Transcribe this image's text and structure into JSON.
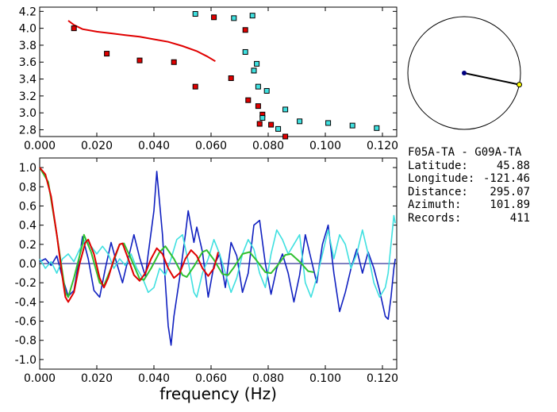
{
  "station_pair": "F05A-TA - G09A-TA",
  "info": [
    {
      "label": "Latitude:",
      "value": "45.88"
    },
    {
      "label": "Longitude:",
      "value": "-121.46"
    },
    {
      "label": "Distance:",
      "value": "295.07"
    },
    {
      "label": "Azimuth:",
      "value": "101.89"
    },
    {
      "label": "Records:",
      "value": "411"
    }
  ],
  "azimuth_deg": 101.89,
  "colors": {
    "red": "#e00000",
    "cyan": "#3fe0e0",
    "blue": "#1020c0",
    "green": "#30c030",
    "navy": "#000080",
    "yellow": "#ffff00"
  },
  "chart_data": [
    {
      "type": "scatter",
      "xlim": [
        0.0,
        0.125
      ],
      "ylim": [
        2.72,
        4.25
      ],
      "xticks": [
        "0.000",
        "0.020",
        "0.040",
        "0.060",
        "0.080",
        "0.100",
        "0.120"
      ],
      "yticks": [
        "2.8",
        "3.0",
        "3.2",
        "3.4",
        "3.6",
        "3.8",
        "4.0",
        "4.2"
      ],
      "series": [
        {
          "marker": "square-red",
          "points": [
            [
              0.012,
              4.0
            ],
            [
              0.0235,
              3.7
            ],
            [
              0.035,
              3.62
            ],
            [
              0.047,
              3.6
            ],
            [
              0.0545,
              3.31
            ],
            [
              0.061,
              4.13
            ],
            [
              0.067,
              3.41
            ],
            [
              0.072,
              3.98
            ],
            [
              0.073,
              3.15
            ],
            [
              0.075,
              3.5
            ],
            [
              0.0765,
              3.08
            ],
            [
              0.077,
              2.87
            ],
            [
              0.078,
              2.98
            ],
            [
              0.081,
              2.86
            ],
            [
              0.086,
              2.72
            ]
          ]
        },
        {
          "marker": "square-cyan",
          "points": [
            [
              0.0545,
              4.17
            ],
            [
              0.068,
              4.12
            ],
            [
              0.0745,
              4.15
            ],
            [
              0.072,
              3.72
            ],
            [
              0.076,
              3.58
            ],
            [
              0.075,
              3.5
            ],
            [
              0.0765,
              3.31
            ],
            [
              0.0795,
              3.26
            ],
            [
              0.078,
              2.94
            ],
            [
              0.086,
              3.04
            ],
            [
              0.0835,
              2.81
            ],
            [
              0.091,
              2.9
            ],
            [
              0.101,
              2.88
            ],
            [
              0.1095,
              2.85
            ],
            [
              0.118,
              2.82
            ]
          ]
        },
        {
          "line": "red",
          "points": [
            [
              0.01,
              4.09
            ],
            [
              0.012,
              4.04
            ],
            [
              0.015,
              3.99
            ],
            [
              0.02,
              3.96
            ],
            [
              0.025,
              3.94
            ],
            [
              0.03,
              3.92
            ],
            [
              0.035,
              3.9
            ],
            [
              0.04,
              3.87
            ],
            [
              0.045,
              3.84
            ],
            [
              0.05,
              3.79
            ],
            [
              0.055,
              3.73
            ],
            [
              0.0585,
              3.67
            ],
            [
              0.0615,
              3.61
            ]
          ]
        }
      ]
    },
    {
      "type": "line",
      "xlabel": "frequency (Hz)",
      "xlim": [
        0.0,
        0.125
      ],
      "ylim": [
        -1.1,
        1.1
      ],
      "xticks": [
        "0.000",
        "0.020",
        "0.040",
        "0.060",
        "0.080",
        "0.100",
        "0.120"
      ],
      "yticks": [
        "1.0",
        "0.8",
        "0.6",
        "0.4",
        "0.2",
        "0.0",
        "-0.2",
        "-0.4",
        "-0.6",
        "-0.8",
        "-1.0"
      ],
      "series": [
        {
          "color": "blue",
          "points": [
            [
              0.0,
              0.02
            ],
            [
              0.002,
              0.05
            ],
            [
              0.004,
              -0.02
            ],
            [
              0.006,
              0.08
            ],
            [
              0.008,
              -0.15
            ],
            [
              0.01,
              -0.34
            ],
            [
              0.012,
              -0.28
            ],
            [
              0.014,
              0.08
            ],
            [
              0.015,
              0.28
            ],
            [
              0.017,
              0.05
            ],
            [
              0.019,
              -0.28
            ],
            [
              0.021,
              -0.35
            ],
            [
              0.023,
              -0.05
            ],
            [
              0.025,
              0.22
            ],
            [
              0.027,
              0.0
            ],
            [
              0.029,
              -0.2
            ],
            [
              0.031,
              0.05
            ],
            [
              0.033,
              0.3
            ],
            [
              0.035,
              0.06
            ],
            [
              0.037,
              -0.13
            ],
            [
              0.038,
              0.1
            ],
            [
              0.04,
              0.55
            ],
            [
              0.041,
              0.96
            ],
            [
              0.043,
              0.3
            ],
            [
              0.044,
              -0.2
            ],
            [
              0.045,
              -0.65
            ],
            [
              0.046,
              -0.85
            ],
            [
              0.047,
              -0.55
            ],
            [
              0.049,
              -0.15
            ],
            [
              0.051,
              0.3
            ],
            [
              0.052,
              0.55
            ],
            [
              0.054,
              0.22
            ],
            [
              0.055,
              0.38
            ],
            [
              0.057,
              0.12
            ],
            [
              0.059,
              -0.35
            ],
            [
              0.061,
              -0.02
            ],
            [
              0.063,
              0.1
            ],
            [
              0.065,
              -0.25
            ],
            [
              0.067,
              0.22
            ],
            [
              0.069,
              0.08
            ],
            [
              0.071,
              -0.3
            ],
            [
              0.073,
              -0.1
            ],
            [
              0.075,
              0.4
            ],
            [
              0.077,
              0.45
            ],
            [
              0.079,
              0.0
            ],
            [
              0.081,
              -0.32
            ],
            [
              0.083,
              -0.05
            ],
            [
              0.085,
              0.1
            ],
            [
              0.087,
              -0.1
            ],
            [
              0.089,
              -0.4
            ],
            [
              0.091,
              -0.12
            ],
            [
              0.093,
              0.3
            ],
            [
              0.095,
              0.05
            ],
            [
              0.097,
              -0.2
            ],
            [
              0.099,
              0.2
            ],
            [
              0.101,
              0.4
            ],
            [
              0.103,
              -0.1
            ],
            [
              0.105,
              -0.5
            ],
            [
              0.107,
              -0.3
            ],
            [
              0.109,
              -0.05
            ],
            [
              0.111,
              0.15
            ],
            [
              0.113,
              -0.1
            ],
            [
              0.115,
              0.12
            ],
            [
              0.117,
              -0.05
            ],
            [
              0.119,
              -0.28
            ],
            [
              0.121,
              -0.55
            ],
            [
              0.122,
              -0.58
            ],
            [
              0.123,
              -0.35
            ],
            [
              0.124,
              -0.05
            ],
            [
              0.1245,
              0.05
            ]
          ]
        },
        {
          "color": "cyan",
          "points": [
            [
              0.0,
              0.05
            ],
            [
              0.002,
              -0.05
            ],
            [
              0.004,
              0.02
            ],
            [
              0.006,
              -0.1
            ],
            [
              0.008,
              0.05
            ],
            [
              0.01,
              0.1
            ],
            [
              0.012,
              0.02
            ],
            [
              0.014,
              0.15
            ],
            [
              0.016,
              0.25
            ],
            [
              0.018,
              0.18
            ],
            [
              0.02,
              0.1
            ],
            [
              0.022,
              0.18
            ],
            [
              0.024,
              0.1
            ],
            [
              0.026,
              -0.05
            ],
            [
              0.028,
              0.05
            ],
            [
              0.03,
              -0.02
            ],
            [
              0.032,
              0.1
            ],
            [
              0.034,
              -0.05
            ],
            [
              0.036,
              -0.15
            ],
            [
              0.038,
              -0.3
            ],
            [
              0.04,
              -0.25
            ],
            [
              0.042,
              -0.05
            ],
            [
              0.044,
              -0.12
            ],
            [
              0.046,
              0.05
            ],
            [
              0.048,
              0.25
            ],
            [
              0.05,
              0.3
            ],
            [
              0.052,
              0.02
            ],
            [
              0.054,
              -0.3
            ],
            [
              0.055,
              -0.35
            ],
            [
              0.057,
              -0.1
            ],
            [
              0.059,
              0.05
            ],
            [
              0.061,
              0.25
            ],
            [
              0.063,
              0.1
            ],
            [
              0.065,
              -0.1
            ],
            [
              0.067,
              -0.3
            ],
            [
              0.069,
              -0.15
            ],
            [
              0.071,
              0.1
            ],
            [
              0.073,
              0.25
            ],
            [
              0.075,
              0.15
            ],
            [
              0.077,
              -0.1
            ],
            [
              0.079,
              -0.25
            ],
            [
              0.081,
              0.1
            ],
            [
              0.083,
              0.35
            ],
            [
              0.085,
              0.25
            ],
            [
              0.087,
              0.1
            ],
            [
              0.089,
              0.2
            ],
            [
              0.091,
              0.3
            ],
            [
              0.093,
              -0.2
            ],
            [
              0.095,
              -0.35
            ],
            [
              0.097,
              -0.15
            ],
            [
              0.099,
              0.1
            ],
            [
              0.101,
              0.35
            ],
            [
              0.103,
              0.05
            ],
            [
              0.105,
              0.3
            ],
            [
              0.107,
              0.2
            ],
            [
              0.109,
              -0.05
            ],
            [
              0.111,
              0.1
            ],
            [
              0.113,
              0.35
            ],
            [
              0.115,
              0.1
            ],
            [
              0.117,
              -0.2
            ],
            [
              0.119,
              -0.35
            ],
            [
              0.121,
              -0.25
            ],
            [
              0.122,
              -0.1
            ],
            [
              0.123,
              0.2
            ],
            [
              0.124,
              0.5
            ],
            [
              0.1245,
              0.42
            ]
          ]
        },
        {
          "color": "green",
          "points": [
            [
              0.0,
              1.0
            ],
            [
              0.003,
              0.85
            ],
            [
              0.006,
              0.3
            ],
            [
              0.009,
              -0.3
            ],
            [
              0.01,
              -0.35
            ],
            [
              0.012,
              -0.15
            ],
            [
              0.015,
              0.2
            ],
            [
              0.0155,
              0.3
            ],
            [
              0.018,
              0.12
            ],
            [
              0.021,
              -0.2
            ],
            [
              0.0225,
              -0.23
            ],
            [
              0.025,
              -0.05
            ],
            [
              0.028,
              0.2
            ],
            [
              0.0295,
              0.21
            ],
            [
              0.032,
              0.05
            ],
            [
              0.035,
              -0.16
            ],
            [
              0.0365,
              -0.17
            ],
            [
              0.039,
              -0.05
            ],
            [
              0.042,
              0.12
            ],
            [
              0.044,
              0.18
            ],
            [
              0.047,
              0.05
            ],
            [
              0.05,
              -0.12
            ],
            [
              0.0515,
              -0.14
            ],
            [
              0.054,
              -0.03
            ],
            [
              0.057,
              0.12
            ],
            [
              0.0585,
              0.14
            ],
            [
              0.061,
              0.04
            ],
            [
              0.064,
              -0.11
            ],
            [
              0.066,
              -0.12
            ],
            [
              0.068,
              -0.04
            ],
            [
              0.071,
              0.1
            ],
            [
              0.0735,
              0.12
            ],
            [
              0.076,
              0.03
            ],
            [
              0.079,
              -0.09
            ],
            [
              0.081,
              -0.1
            ],
            [
              0.083,
              -0.03
            ],
            [
              0.086,
              0.09
            ],
            [
              0.088,
              0.1
            ],
            [
              0.091,
              0.02
            ],
            [
              0.094,
              -0.08
            ],
            [
              0.096,
              -0.09
            ]
          ]
        },
        {
          "color": "red",
          "points": [
            [
              0.0,
              1.0
            ],
            [
              0.002,
              0.93
            ],
            [
              0.004,
              0.7
            ],
            [
              0.006,
              0.3
            ],
            [
              0.008,
              -0.15
            ],
            [
              0.009,
              -0.35
            ],
            [
              0.01,
              -0.4
            ],
            [
              0.012,
              -0.3
            ],
            [
              0.014,
              0.0
            ],
            [
              0.016,
              0.22
            ],
            [
              0.017,
              0.25
            ],
            [
              0.019,
              0.1
            ],
            [
              0.021,
              -0.15
            ],
            [
              0.0225,
              -0.25
            ],
            [
              0.024,
              -0.15
            ],
            [
              0.026,
              0.05
            ],
            [
              0.028,
              0.2
            ],
            [
              0.029,
              0.21
            ],
            [
              0.031,
              0.05
            ],
            [
              0.033,
              -0.12
            ],
            [
              0.035,
              -0.18
            ],
            [
              0.037,
              -0.1
            ],
            [
              0.039,
              0.05
            ],
            [
              0.041,
              0.16
            ],
            [
              0.043,
              0.1
            ],
            [
              0.045,
              -0.05
            ],
            [
              0.047,
              -0.15
            ],
            [
              0.049,
              -0.1
            ],
            [
              0.051,
              0.05
            ],
            [
              0.053,
              0.14
            ],
            [
              0.055,
              0.08
            ],
            [
              0.057,
              -0.05
            ],
            [
              0.059,
              -0.13
            ],
            [
              0.061,
              -0.05
            ],
            [
              0.0625,
              0.12
            ]
          ]
        }
      ]
    }
  ]
}
